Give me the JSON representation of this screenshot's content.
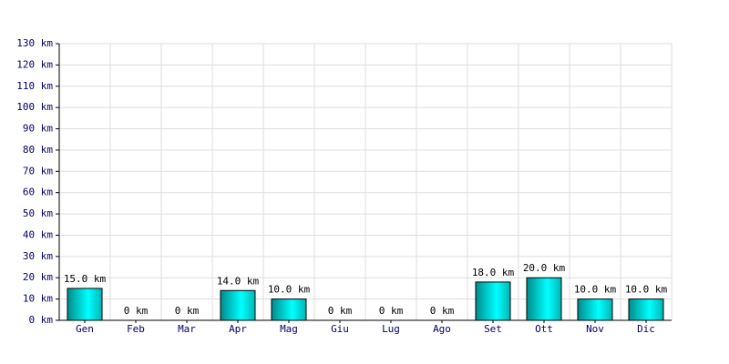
{
  "chart_data": {
    "type": "bar",
    "categories": [
      "Gen",
      "Feb",
      "Mar",
      "Apr",
      "Mag",
      "Giu",
      "Lug",
      "Ago",
      "Set",
      "Ott",
      "Nov",
      "Dic"
    ],
    "values": [
      15,
      0,
      0,
      14,
      10,
      0,
      0,
      0,
      18,
      20,
      10,
      10
    ],
    "value_labels": [
      "15.0 km",
      "0 km",
      "0 km",
      "14.0 km",
      "10.0 km",
      "0 km",
      "0 km",
      "0 km",
      "18.0 km",
      "20.0 km",
      "10.0 km",
      "10.0 km"
    ],
    "color": "#00e5e5",
    "ylim": [
      0,
      130
    ],
    "yticks": [
      {
        "value": 0,
        "label": "0 km"
      },
      {
        "value": 10,
        "label": "10 km"
      },
      {
        "value": 20,
        "label": "20 km"
      },
      {
        "value": 30,
        "label": "30 km"
      },
      {
        "value": 40,
        "label": "40 km"
      },
      {
        "value": 50,
        "label": "50 km"
      },
      {
        "value": 60,
        "label": "60 km"
      },
      {
        "value": 70,
        "label": "70 km"
      },
      {
        "value": 80,
        "label": "80 km"
      },
      {
        "value": 90,
        "label": "90 km"
      },
      {
        "value": 100,
        "label": "100 km"
      },
      {
        "value": 110,
        "label": "110 km"
      },
      {
        "value": 120,
        "label": "120 km"
      },
      {
        "value": 130,
        "label": "130 km"
      }
    ],
    "grid": true
  }
}
